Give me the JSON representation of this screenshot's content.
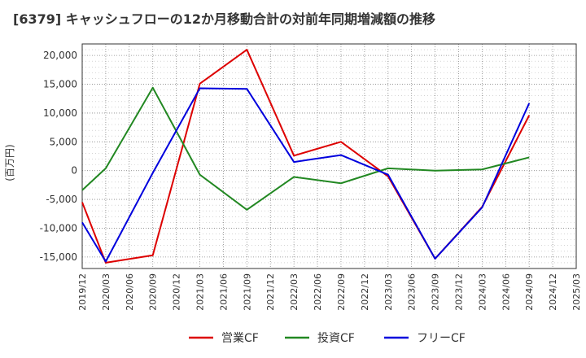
{
  "chart_data": {
    "type": "line",
    "title": "[6379]  キャッシュフローの12か月移動合計の対前年同期増減額の推移",
    "ylabel": "(百万円)",
    "xlabel": "",
    "ylim": [
      -17000,
      22000
    ],
    "y_ticks": [
      -15000,
      -10000,
      -5000,
      0,
      5000,
      10000,
      15000,
      20000
    ],
    "y_tick_labels": [
      "-15,000",
      "-10,000",
      "-5,000",
      "0",
      "5,000",
      "10,000",
      "15,000",
      "20,000"
    ],
    "x_ticks": [
      "2019/12",
      "2020/03",
      "2020/06",
      "2020/09",
      "2020/12",
      "2021/03",
      "2021/06",
      "2021/09",
      "2021/12",
      "2022/03",
      "2022/06",
      "2022/09",
      "2022/12",
      "2023/03",
      "2023/06",
      "2023/09",
      "2023/12",
      "2024/03",
      "2024/06",
      "2024/09",
      "2024/12",
      "2025/03"
    ],
    "grid": true,
    "legend_position": "bottom",
    "series": [
      {
        "name": "営業CF",
        "color": "#dd0000",
        "points": [
          {
            "x": "2019/12",
            "y": -5500
          },
          {
            "x": "2020/03",
            "y": -16000
          },
          {
            "x": "2020/09",
            "y": -14700
          },
          {
            "x": "2021/03",
            "y": 15100
          },
          {
            "x": "2021/09",
            "y": 21000
          },
          {
            "x": "2022/03",
            "y": 2600
          },
          {
            "x": "2022/09",
            "y": 5000
          },
          {
            "x": "2023/03",
            "y": -1000
          },
          {
            "x": "2023/09",
            "y": -15300
          },
          {
            "x": "2024/03",
            "y": -6300
          },
          {
            "x": "2024/09",
            "y": 9600
          }
        ]
      },
      {
        "name": "投資CF",
        "color": "#228822",
        "points": [
          {
            "x": "2019/12",
            "y": -3400
          },
          {
            "x": "2020/03",
            "y": 400
          },
          {
            "x": "2020/09",
            "y": 14400
          },
          {
            "x": "2021/03",
            "y": -700
          },
          {
            "x": "2021/09",
            "y": -6800
          },
          {
            "x": "2022/03",
            "y": -1100
          },
          {
            "x": "2022/09",
            "y": -2200
          },
          {
            "x": "2023/03",
            "y": 400
          },
          {
            "x": "2023/09",
            "y": 0
          },
          {
            "x": "2024/03",
            "y": 200
          },
          {
            "x": "2024/09",
            "y": 2300
          }
        ]
      },
      {
        "name": "フリーCF",
        "color": "#0000dd",
        "points": [
          {
            "x": "2019/12",
            "y": -9000
          },
          {
            "x": "2020/03",
            "y": -15800
          },
          {
            "x": "2020/09",
            "y": -400
          },
          {
            "x": "2021/03",
            "y": 14300
          },
          {
            "x": "2021/09",
            "y": 14200
          },
          {
            "x": "2022/03",
            "y": 1500
          },
          {
            "x": "2022/09",
            "y": 2700
          },
          {
            "x": "2023/03",
            "y": -700
          },
          {
            "x": "2023/09",
            "y": -15300
          },
          {
            "x": "2024/03",
            "y": -6400
          },
          {
            "x": "2024/09",
            "y": 11700
          }
        ]
      }
    ]
  }
}
